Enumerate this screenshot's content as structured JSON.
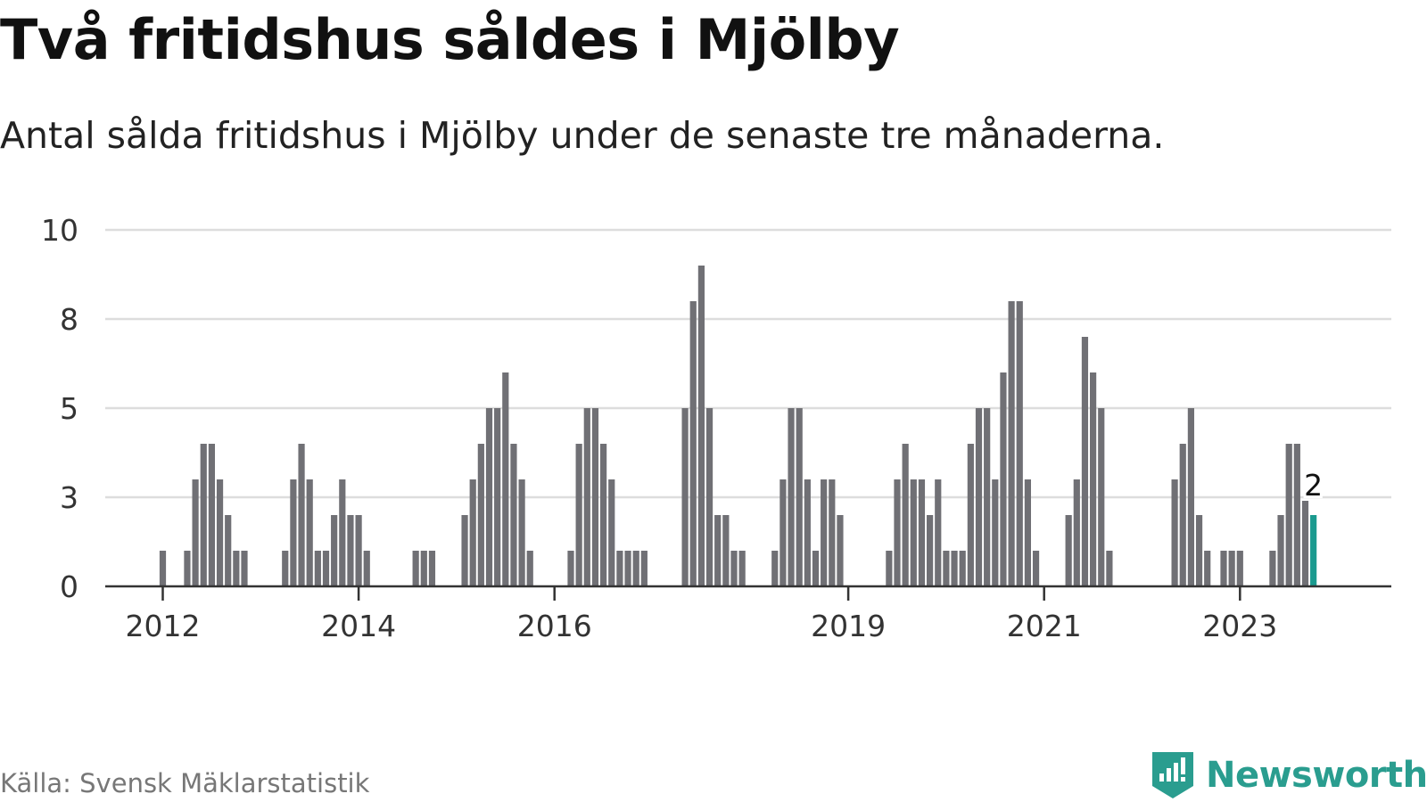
{
  "header": {
    "title": "Två fritidshus såldes i Mjölby",
    "subtitle": "Antal sålda fritidshus i Mjölby under de senaste tre månaderna."
  },
  "footer": {
    "source": "Källa: Svensk Mäklarstatistik",
    "brand": "Newsworthy"
  },
  "colors": {
    "bar": "#707075",
    "highlight": "#1a9a8f",
    "grid": "#dddddd",
    "axis": "#333333",
    "brand": "#2a9d8f"
  },
  "chart_data": {
    "type": "bar",
    "title": "Två fritidshus såldes i Mjölby",
    "subtitle": "Antal sålda fritidshus i Mjölby under de senaste tre månaderna.",
    "xlabel": "",
    "ylabel": "",
    "ylim": [
      0,
      10
    ],
    "yticks": [
      {
        "value": 0,
        "label": "0"
      },
      {
        "value": 2.5,
        "label": "3"
      },
      {
        "value": 5,
        "label": "5"
      },
      {
        "value": 7.5,
        "label": "8"
      },
      {
        "value": 10,
        "label": "10"
      }
    ],
    "xticks": [
      {
        "index": 0,
        "label": "2012"
      },
      {
        "index": 24,
        "label": "2014"
      },
      {
        "index": 48,
        "label": "2016"
      },
      {
        "index": 84,
        "label": "2019"
      },
      {
        "index": 108,
        "label": "2021"
      },
      {
        "index": 132,
        "label": "2023"
      }
    ],
    "grid": true,
    "highlight_index": 141,
    "annotation": {
      "index": 141,
      "label": "2"
    },
    "values": [
      1,
      0,
      0,
      1,
      3,
      4,
      4,
      3,
      2,
      1,
      1,
      0,
      0,
      0,
      0,
      1,
      3,
      4,
      3,
      1,
      1,
      2,
      3,
      2,
      2,
      1,
      0,
      0,
      0,
      0,
      0,
      1,
      1,
      1,
      0,
      0,
      0,
      2,
      3,
      4,
      5,
      5,
      6,
      4,
      3,
      1,
      0,
      0,
      0,
      0,
      1,
      4,
      5,
      5,
      4,
      3,
      1,
      1,
      1,
      1,
      0,
      0,
      0,
      0,
      5,
      8,
      9,
      5,
      2,
      2,
      1,
      1,
      0,
      0,
      0,
      1,
      3,
      5,
      5,
      3,
      1,
      3,
      3,
      2,
      0,
      0,
      0,
      0,
      0,
      1,
      3,
      4,
      3,
      3,
      2,
      3,
      1,
      1,
      1,
      4,
      5,
      5,
      3,
      6,
      8,
      8,
      3,
      1,
      0,
      0,
      0,
      2,
      3,
      7,
      6,
      5,
      1,
      0,
      0,
      0,
      0,
      0,
      0,
      0,
      3,
      4,
      5,
      2,
      1,
      0,
      1,
      1,
      1,
      0,
      0,
      0,
      1,
      2,
      4,
      4,
      2.4,
      2
    ]
  }
}
